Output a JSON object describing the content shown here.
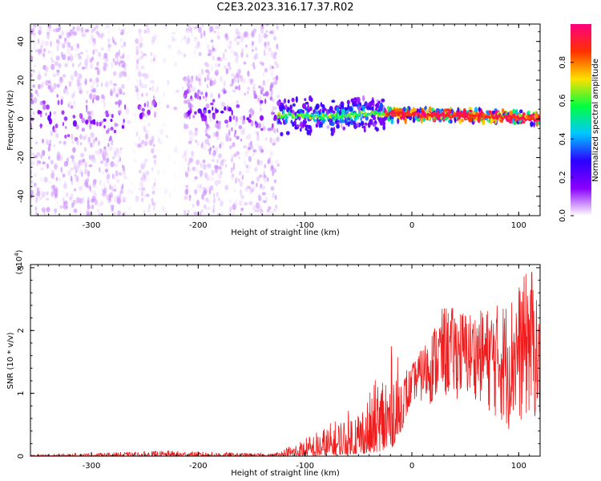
{
  "title": "C2E3.2023.316.17.37.R02",
  "chart_data": [
    {
      "type": "heatmap",
      "xlabel": "Height of straight line (km)",
      "ylabel": "Frequency (Hz)",
      "xlim": [
        -357,
        120
      ],
      "ylim": [
        -50,
        49
      ],
      "xticks": [
        -300,
        -200,
        -100,
        0,
        100
      ],
      "yticks": [
        -40,
        -20,
        0,
        20,
        40
      ],
      "colorbar": {
        "label": "Normalized spectral amplitude",
        "range": [
          0.0,
          1.0
        ],
        "ticks": [
          0.0,
          0.2,
          0.4,
          0.6,
          0.8
        ],
        "colors": [
          "#ffffff",
          "#8a00ff",
          "#2b00ff",
          "#00c8ff",
          "#00ff40",
          "#ffe000",
          "#ff3000",
          "#ff0080"
        ]
      },
      "regions": [
        {
          "x": [
            -357,
            -268
          ],
          "freq_range": [
            -50,
            49
          ],
          "amplitude": 0.08
        },
        {
          "x": [
            -268,
            -258
          ],
          "freq_range": [
            -50,
            49
          ],
          "amplitude": 0.02
        },
        {
          "x": [
            -258,
            -240
          ],
          "freq_range": [
            -50,
            49
          ],
          "amplitude": 0.06
        },
        {
          "x": [
            -240,
            -213
          ],
          "freq_range": [
            -50,
            49
          ],
          "amplitude": 0.03
        },
        {
          "x": [
            -213,
            -125
          ],
          "freq_range": [
            -50,
            49
          ],
          "amplitude": 0.08
        },
        {
          "x": [
            -125,
            -25
          ],
          "freq_range": [
            -10,
            10
          ],
          "amplitude": 0.35
        },
        {
          "x": [
            -25,
            120
          ],
          "freq_range": [
            -3,
            5
          ],
          "amplitude": 0.75
        }
      ],
      "ridge": [
        {
          "x": -270,
          "freq": 0
        },
        {
          "x": -230,
          "freq": 6
        },
        {
          "x": -130,
          "freq": 2
        },
        {
          "x": -80,
          "freq": 1
        },
        {
          "x": -40,
          "freq": 3
        },
        {
          "x": 0,
          "freq": 2
        },
        {
          "x": 60,
          "freq": 2
        },
        {
          "x": 90,
          "freq": 1
        },
        {
          "x": 120,
          "freq": 0
        }
      ]
    },
    {
      "type": "line",
      "xlabel": "Height of straight line (km)",
      "ylabel": "SNR (10 * v/v)",
      "y_multiplier_label": "(x10",
      "y_multiplier_exp": "4",
      "y_multiplier_close": ")",
      "xlim": [
        -357,
        120
      ],
      "ylim": [
        0,
        3.05
      ],
      "xticks": [
        -300,
        -200,
        -100,
        0,
        100
      ],
      "yticks": [
        0,
        1,
        2,
        3
      ],
      "series": [
        {
          "color": "#ee1c1c",
          "envelope": [
            {
              "x": -357,
              "low": 0.0,
              "high": 0.02
            },
            {
              "x": -260,
              "low": 0.0,
              "high": 0.07
            },
            {
              "x": -230,
              "low": 0.0,
              "high": 0.09
            },
            {
              "x": -130,
              "low": 0.0,
              "high": 0.04
            },
            {
              "x": -100,
              "low": 0.0,
              "high": 0.3
            },
            {
              "x": -70,
              "low": 0.02,
              "high": 0.6
            },
            {
              "x": -40,
              "low": 0.05,
              "high": 1.0
            },
            {
              "x": -20,
              "low": 0.1,
              "high": 1.8
            },
            {
              "x": -10,
              "low": 0.4,
              "high": 1.5
            },
            {
              "x": 0,
              "low": 0.9,
              "high": 1.45
            },
            {
              "x": 15,
              "low": 0.8,
              "high": 1.9
            },
            {
              "x": 30,
              "low": 0.9,
              "high": 2.4
            },
            {
              "x": 60,
              "low": 0.9,
              "high": 2.3
            },
            {
              "x": 90,
              "low": 0.4,
              "high": 2.5
            },
            {
              "x": 112,
              "low": 0.6,
              "high": 3.05
            },
            {
              "x": 120,
              "low": 0.5,
              "high": 2.1
            }
          ]
        }
      ]
    }
  ]
}
